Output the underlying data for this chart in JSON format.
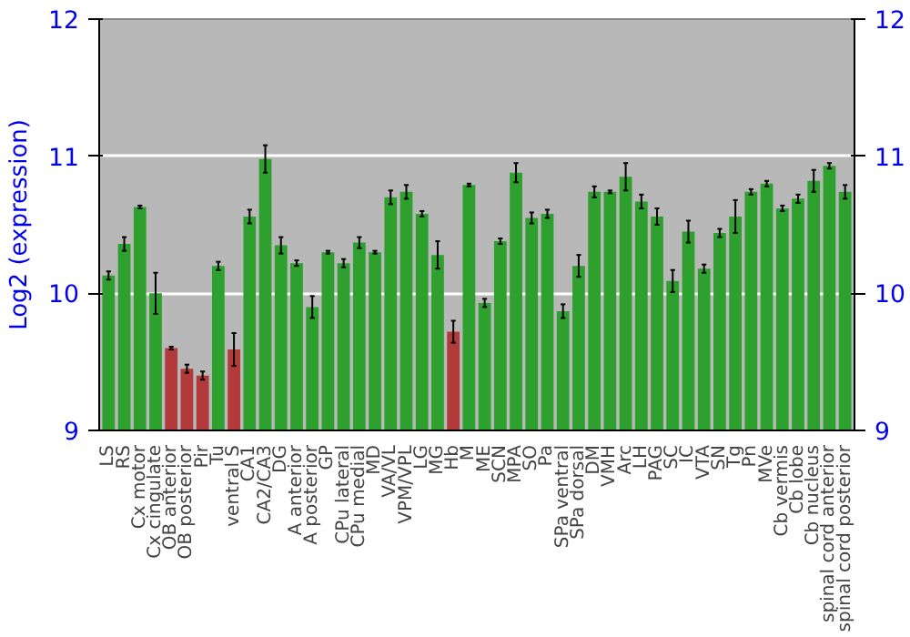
{
  "chart_data": {
    "type": "bar",
    "ylabel": "Log2 (expression)",
    "categories": [
      "LS",
      "RS",
      "Cx motor",
      "Cx cingulate",
      "OB anterior",
      "OB posterior",
      "Pir",
      "Tu",
      "ventral S",
      "CA1",
      "CA2/CA3",
      "DG",
      "A anterior",
      "A posterior",
      "GP",
      "CPu lateral",
      "CPu medial",
      "MD",
      "VA/VL",
      "VPM/VPL",
      "LG",
      "MG",
      "Hb",
      "M",
      "ME",
      "SCN",
      "MPA",
      "SO",
      "Pa",
      "SPa ventral",
      "SPa dorsal",
      "DM",
      "VMH",
      "Arc",
      "LH",
      "PAG",
      "SC",
      "IC",
      "VTA",
      "SN",
      "Tg",
      "Pn",
      "MVe",
      "Cb vermis",
      "Cb lobe",
      "Cb nucleus",
      "spinal cord anterior",
      "spinal cord posterior"
    ],
    "values": [
      10.13,
      10.36,
      10.63,
      10.0,
      9.6,
      9.45,
      9.4,
      10.2,
      9.59,
      10.56,
      10.98,
      10.35,
      10.22,
      9.9,
      10.3,
      10.22,
      10.37,
      10.3,
      10.7,
      10.74,
      10.58,
      10.28,
      9.72,
      10.79,
      9.93,
      10.38,
      10.88,
      10.55,
      10.58,
      9.87,
      10.2,
      10.74,
      10.74,
      10.85,
      10.67,
      10.56,
      10.09,
      10.45,
      10.18,
      10.44,
      10.56,
      10.74,
      10.8,
      10.62,
      10.69,
      10.82,
      10.93,
      10.74
    ],
    "errors": [
      0.03,
      0.05,
      0.01,
      0.15,
      0.01,
      0.03,
      0.03,
      0.03,
      0.12,
      0.05,
      0.1,
      0.06,
      0.02,
      0.08,
      0.01,
      0.03,
      0.04,
      0.01,
      0.05,
      0.05,
      0.02,
      0.1,
      0.08,
      0.01,
      0.03,
      0.02,
      0.07,
      0.04,
      0.03,
      0.05,
      0.08,
      0.04,
      0.01,
      0.1,
      0.05,
      0.06,
      0.08,
      0.08,
      0.03,
      0.03,
      0.12,
      0.02,
      0.02,
      0.02,
      0.03,
      0.08,
      0.02,
      0.05
    ],
    "colors": [
      "#2ea02e",
      "#2ea02e",
      "#2ea02e",
      "#2ea02e",
      "#b33a3a",
      "#b33a3a",
      "#b33a3a",
      "#2ea02e",
      "#b33a3a",
      "#2ea02e",
      "#2ea02e",
      "#2ea02e",
      "#2ea02e",
      "#2ea02e",
      "#2ea02e",
      "#2ea02e",
      "#2ea02e",
      "#2ea02e",
      "#2ea02e",
      "#2ea02e",
      "#2ea02e",
      "#2ea02e",
      "#b33a3a",
      "#2ea02e",
      "#2ea02e",
      "#2ea02e",
      "#2ea02e",
      "#2ea02e",
      "#2ea02e",
      "#2ea02e",
      "#2ea02e",
      "#2ea02e",
      "#2ea02e",
      "#2ea02e",
      "#2ea02e",
      "#2ea02e",
      "#2ea02e",
      "#2ea02e",
      "#2ea02e",
      "#2ea02e",
      "#2ea02e",
      "#2ea02e",
      "#2ea02e",
      "#2ea02e",
      "#2ea02e",
      "#2ea02e",
      "#2ea02e",
      "#2ea02e"
    ],
    "ylim": [
      9,
      12
    ],
    "yticks": [
      9,
      10,
      11,
      12
    ],
    "y2lim": [
      9,
      12
    ],
    "y2ticks": [
      9,
      10,
      11,
      12
    ],
    "grid": "y"
  }
}
